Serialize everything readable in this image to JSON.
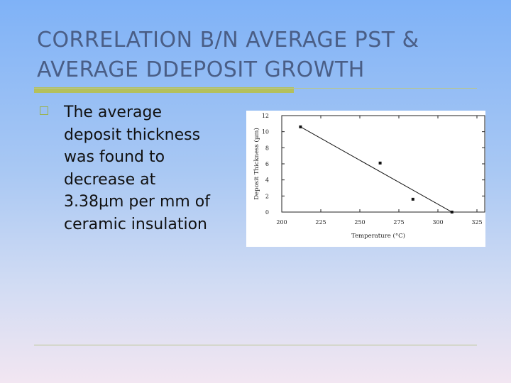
{
  "slide": {
    "title_line1": "CORRELATION B/N AVERAGE PST &",
    "title_line2": "AVERAGE DDEPOSIT GROWTH",
    "bullet_lines": [
      "The average",
      "deposit thickness",
      "was found to",
      "decrease at",
      "3.38µm per mm of",
      "ceramic insulation"
    ],
    "colors": {
      "title": "#4a5e86",
      "accent_rule": "#b4c05c",
      "bullet": "#9bb24c"
    },
    "bullet_icon": "hollow-square-bullet-icon"
  },
  "chart_data": {
    "type": "scatter",
    "xlabel": "Temperature (°C)",
    "ylabel": "Deposit Thickness (µm)",
    "xlim": [
      200,
      330
    ],
    "ylim": [
      0,
      12
    ],
    "x_ticks": [
      "200",
      "225",
      "250",
      "275",
      "300",
      "325"
    ],
    "y_ticks": [
      "0",
      "2",
      "4",
      "6",
      "8",
      "10",
      "12"
    ],
    "grid": false,
    "series": [
      {
        "points": [
          [
            212,
            10.6
          ],
          [
            263,
            6.1
          ],
          [
            284,
            1.6
          ],
          [
            309,
            0.0
          ]
        ]
      }
    ],
    "fit_line": {
      "from": [
        212,
        10.6
      ],
      "to": [
        309,
        0.0
      ]
    }
  }
}
